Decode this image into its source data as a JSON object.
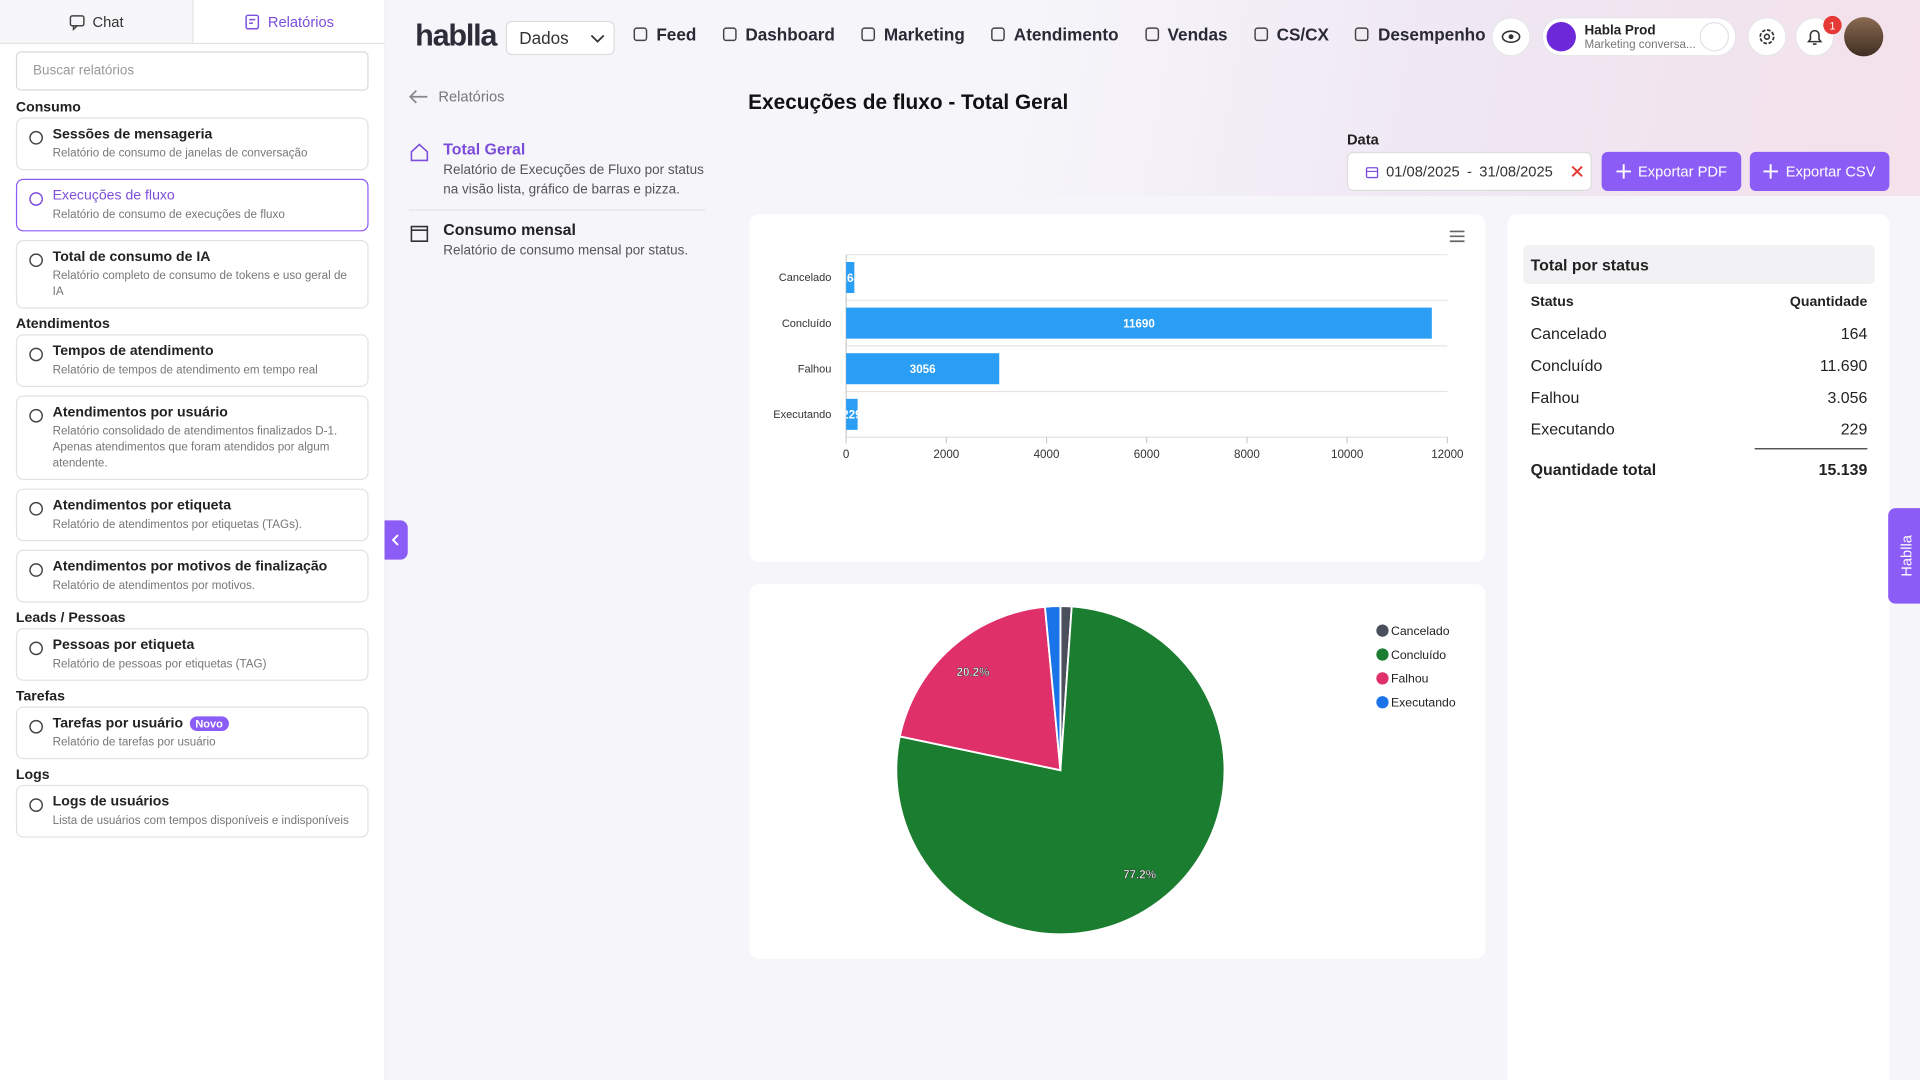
{
  "sidebar": {
    "tabs": [
      "Chat",
      "Relatórios"
    ],
    "search_placeholder": "Buscar relatórios",
    "sections": [
      {
        "title": "Consumo",
        "items": [
          {
            "title": "Sessões de mensageria",
            "description": "Relatório de consumo de janelas de conversação"
          },
          {
            "title": "Execuções de fluxo",
            "description": "Relatório de consumo de execuções de fluxo"
          },
          {
            "title": "Total de consumo de IA",
            "description": "Relatório completo de consumo de tokens e uso geral de IA"
          }
        ]
      },
      {
        "title": "Atendimentos",
        "items": [
          {
            "title": "Tempos de atendimento",
            "description": "Relatório de tempos de atendimento em tempo real"
          },
          {
            "title": "Atendimentos por usuário",
            "description": "Relatório consolidado de atendimentos finalizados D-1. Apenas atendimentos que foram atendidos por algum atendente."
          },
          {
            "title": "Atendimentos por etiqueta",
            "description": "Relatório de atendimentos por etiquetas (TAGs)."
          },
          {
            "title": "Atendimentos por motivos de finalização",
            "description": "Relatório de atendimentos por motivos."
          }
        ]
      },
      {
        "title": "Leads / Pessoas",
        "items": [
          {
            "title": "Pessoas por etiqueta",
            "description": "Relatório de pessoas por etiquetas (TAG)"
          }
        ]
      },
      {
        "title": "Tarefas",
        "items": [
          {
            "title": "Tarefas por usuário",
            "description": "Relatório de tarefas por usuário",
            "badge": "Novo"
          }
        ]
      },
      {
        "title": "Logs",
        "items": [
          {
            "title": "Logs de usuários",
            "description": "Lista de usuários com tempos disponíveis e indisponíveis"
          }
        ]
      }
    ]
  },
  "topbar": {
    "logo": "hablla",
    "module": "Dados",
    "nav": [
      "Feed",
      "Dashboard",
      "Marketing",
      "Atendimento",
      "Vendas",
      "CS/CX",
      "Desempenho"
    ],
    "account": {
      "name": "Habla Prod",
      "subtitle": "Marketing conversa..."
    },
    "notifications": "1"
  },
  "report_menu": {
    "back": "Relatórios",
    "items": [
      {
        "title": "Total Geral",
        "description": "Relatório de Execuções de Fluxo por status na visão lista, gráfico de barras e pizza."
      },
      {
        "title": "Consumo mensal",
        "description": "Relatório de consumo mensal por status."
      }
    ]
  },
  "header": {
    "title": "Execuções de fluxo - Total Geral",
    "date_label": "Data",
    "date_start": "01/08/2025",
    "date_separator": "-",
    "date_end": "31/08/2025",
    "buttons": [
      "Exportar PDF",
      "Exportar CSV"
    ]
  },
  "side_tab": "Hablla",
  "chart_data": [
    {
      "type": "bar",
      "orientation": "horizontal",
      "categories": [
        "Cancelado",
        "Concluído",
        "Falhou",
        "Executando"
      ],
      "values": [
        164,
        11690,
        3056,
        229
      ],
      "color": "#2a9df4",
      "xlim": [
        0,
        12000
      ],
      "xticks": [
        0,
        2000,
        4000,
        6000,
        8000,
        10000,
        12000
      ]
    },
    {
      "type": "pie",
      "categories": [
        "Cancelado",
        "Concluído",
        "Falhou",
        "Executando"
      ],
      "values": [
        1.1,
        77.2,
        20.2,
        1.5
      ],
      "value_labels": [
        null,
        "77.2%",
        "20.2%",
        null
      ],
      "colors": [
        "#4a4f5c",
        "#1b7d2f",
        "#e0306a",
        "#1a73e8"
      ],
      "legend": "top-right"
    }
  ],
  "table": {
    "title": "Total por status",
    "columns": [
      "Status",
      "Quantidade"
    ],
    "rows": [
      [
        "Cancelado",
        "164"
      ],
      [
        "Concluído",
        "11.690"
      ],
      [
        "Falhou",
        "3.056"
      ],
      [
        "Executando",
        "229"
      ]
    ],
    "total": [
      "Quantidade total",
      "15.139"
    ]
  }
}
